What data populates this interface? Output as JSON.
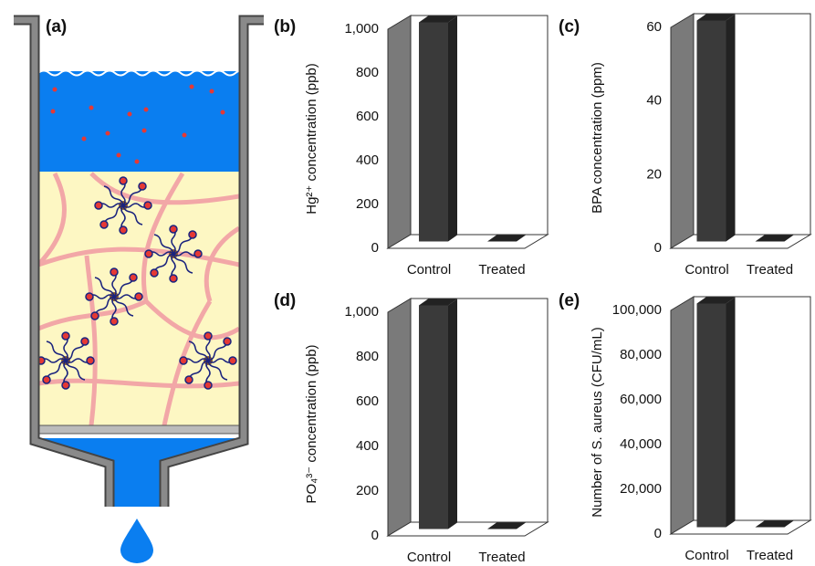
{
  "panel_a": {
    "label": "(a)"
  },
  "chart_data": [
    {
      "type": "bar",
      "panel": "(b)",
      "ylabel": "Hg²⁺ concentration (ppb)",
      "categories": [
        "Control",
        "Treated"
      ],
      "values": [
        1000,
        0
      ],
      "color": "#3a3a3a",
      "ylim": [
        0,
        1000
      ],
      "yticks": [
        0,
        200,
        400,
        600,
        800,
        {
          "value": 1000,
          "label": "1,000"
        }
      ]
    },
    {
      "type": "bar",
      "panel": "(c)",
      "ylabel": "BPA concentration (ppm)",
      "categories": [
        "Control",
        "Treated"
      ],
      "values": [
        60,
        0
      ],
      "color": "#3a3a3a",
      "ylim": [
        0,
        60
      ],
      "yticks": [
        0,
        20,
        40,
        60
      ]
    },
    {
      "type": "bar",
      "panel": "(d)",
      "ylabel": "PO₄³⁻ concentration (ppb)",
      "categories": [
        "Control",
        "Treated"
      ],
      "values": [
        1000,
        0
      ],
      "color": "#3a3a3a",
      "ylim": [
        0,
        1000
      ],
      "yticks": [
        0,
        200,
        400,
        600,
        800,
        {
          "value": 1000,
          "label": "1,000"
        }
      ]
    },
    {
      "type": "bar",
      "panel": "(e)",
      "ylabel": "Number of S. aureus (CFU/mL)",
      "categories": [
        "Control",
        "Treated"
      ],
      "values": [
        100000,
        0
      ],
      "color": "#3a3a3a",
      "ylim": [
        0,
        100000
      ],
      "yticks": [
        0,
        {
          "value": 20000,
          "label": "20,000"
        },
        {
          "value": 40000,
          "label": "40,000"
        },
        {
          "value": 60000,
          "label": "60,000"
        },
        {
          "value": 80000,
          "label": "80,000"
        },
        {
          "value": 100000,
          "label": "100,000"
        }
      ]
    }
  ]
}
